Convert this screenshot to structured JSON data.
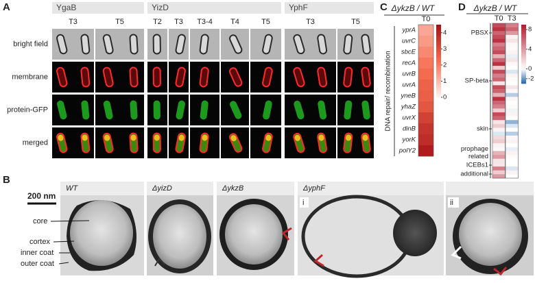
{
  "panel_labels": [
    "A",
    "B",
    "C",
    "D"
  ],
  "panel_a": {
    "groups": [
      {
        "name": "YgaB",
        "timepoints": [
          "T3",
          "T5"
        ]
      },
      {
        "name": "YizD",
        "timepoints": [
          "T2",
          "T3",
          "T3-4",
          "T4",
          "T5"
        ]
      },
      {
        "name": "YphF",
        "timepoints": [
          "T3",
          "T5"
        ]
      }
    ],
    "rows": [
      "bright field",
      "membrane",
      "protein-GFP",
      "merged"
    ]
  },
  "panel_b": {
    "scale_bar": "200 nm",
    "strains": [
      "WT",
      "ΔyizD",
      "ΔykzB",
      "ΔyphF"
    ],
    "subpanels": [
      "i",
      "ii"
    ],
    "annotations": [
      "core",
      "cortex",
      "inner coat",
      "outer coat"
    ]
  },
  "chart_data": [
    {
      "type": "heatmap",
      "title": "ΔykzB / WT",
      "axis_label": "DNA repair/ recombination",
      "categories": [
        "yprA",
        "uvrC",
        "sbcE",
        "recA",
        "uvrB",
        "uvrA",
        "yneB",
        "yhaZ",
        "uvrX",
        "dinB",
        "yorK",
        "polY2"
      ],
      "series": [
        {
          "name": "T0",
          "values": [
            1.3,
            1.5,
            1.8,
            2.1,
            2.3,
            2.5,
            2.6,
            2.8,
            3.3,
            3.6,
            3.8,
            4.2
          ]
        }
      ],
      "colorbar_lim": [
        0,
        4.5
      ],
      "colorbar_ticks": [
        4,
        3,
        2,
        1,
        0
      ]
    },
    {
      "type": "heatmap",
      "title": "ΔykzB / WT",
      "categories": [
        null,
        null,
        null,
        null,
        null,
        null,
        null,
        null,
        null,
        null,
        null,
        null,
        null,
        null,
        null,
        null,
        null,
        null,
        null,
        null,
        null,
        null,
        null,
        null,
        null,
        null,
        null,
        null,
        null,
        null,
        null,
        null,
        null,
        null,
        null,
        null,
        null,
        null,
        null,
        null
      ],
      "regions": [
        "PBSX",
        "SP-beta",
        "skin",
        "prophage related",
        "ICEBs1",
        "additional"
      ],
      "series": [
        {
          "name": "T0",
          "values": [
            7,
            8,
            6,
            7,
            8,
            5,
            6,
            7,
            3,
            6,
            8,
            2,
            7,
            5,
            6,
            1,
            7,
            6,
            3,
            8,
            6,
            5,
            2,
            7,
            6,
            1,
            2,
            0.5,
            -0.5,
            1.5,
            2,
            0.5,
            0.3,
            3,
            4,
            1,
            1,
            5,
            2,
            4
          ]
        },
        {
          "name": "T3",
          "values": [
            5,
            6,
            4,
            0.5,
            1,
            0.3,
            0.2,
            0.5,
            -0.3,
            1,
            0.3,
            0,
            -0.5,
            0.5,
            0.2,
            0,
            1,
            0.3,
            -1,
            0.4,
            0,
            0.2,
            -0.2,
            0.5,
            0,
            -1.5,
            -0.5,
            0,
            -1,
            0.3,
            0.5,
            0,
            -0.3,
            0.5,
            0.2,
            0,
            0,
            -0.5,
            0.5,
            0
          ]
        }
      ],
      "colorbar_lim": [
        -3,
        9
      ],
      "colorbar_ticks": [
        8,
        4,
        0,
        -2
      ]
    }
  ]
}
